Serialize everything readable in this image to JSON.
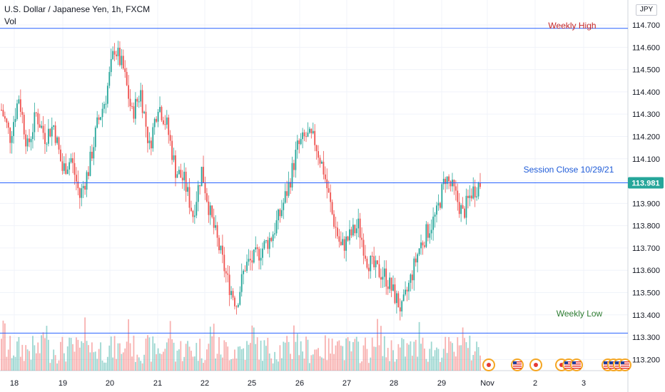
{
  "header": {
    "title": "U.S. Dollar / Japanese Yen, 1h, FXCM",
    "indicator": "Vol",
    "currency": "JPY"
  },
  "annotations": {
    "weekly_high": "Weekly High",
    "weekly_low": "Weekly Low",
    "session_close": "Session Close 10/29/21",
    "last_price": "113.981"
  },
  "colors": {
    "up": "#26a69a",
    "down": "#ef5350",
    "level_line": "#2962ff",
    "weekly_high_text": "#c62828",
    "weekly_low_text": "#2e7d32",
    "session_text": "#1e5bd8",
    "price_tag_bg": "#26a69a"
  },
  "events": [
    "jp-flag-icon",
    "us-flag-icon",
    "jp-flag-icon",
    "jp-flag-icon",
    "us-flag-icon",
    "us-flag-icon",
    "us-flag-icon",
    "us-flag-icon",
    "us-flag-icon",
    "us-flag-icon"
  ],
  "chart_data": {
    "type": "candlestick",
    "y_ticks": [
      "113.200",
      "113.300",
      "113.400",
      "113.500",
      "113.600",
      "113.700",
      "113.800",
      "113.900",
      "114.000",
      "114.100",
      "114.200",
      "114.300",
      "114.400",
      "114.500",
      "114.600",
      "114.700"
    ],
    "x_ticks": [
      "18",
      "19",
      "20",
      "21",
      "22",
      "25",
      "26",
      "27",
      "28",
      "29",
      "Nov",
      "2",
      "3"
    ],
    "ylim": [
      113.15,
      114.78
    ],
    "levels": {
      "weekly_high": 114.685,
      "session_close": 113.992,
      "weekly_low": 113.318
    },
    "anchors": [
      [
        0,
        114.32
      ],
      [
        5,
        114.2
      ],
      [
        10,
        114.38
      ],
      [
        15,
        114.15
      ],
      [
        20,
        114.3
      ],
      [
        25,
        114.2
      ],
      [
        30,
        114.25
      ],
      [
        35,
        114.05
      ],
      [
        40,
        114.1
      ],
      [
        45,
        113.93
      ],
      [
        50,
        114.05
      ],
      [
        55,
        114.25
      ],
      [
        60,
        114.38
      ],
      [
        65,
        114.6
      ],
      [
        70,
        114.5
      ],
      [
        75,
        114.3
      ],
      [
        80,
        114.4
      ],
      [
        85,
        114.15
      ],
      [
        90,
        114.35
      ],
      [
        95,
        114.25
      ],
      [
        100,
        114.05
      ],
      [
        105,
        114.0
      ],
      [
        110,
        113.85
      ],
      [
        115,
        114.05
      ],
      [
        120,
        113.85
      ],
      [
        125,
        113.7
      ],
      [
        130,
        113.55
      ],
      [
        135,
        113.45
      ],
      [
        140,
        113.62
      ],
      [
        145,
        113.65
      ],
      [
        150,
        113.7
      ],
      [
        155,
        113.75
      ],
      [
        160,
        113.85
      ],
      [
        165,
        113.98
      ],
      [
        170,
        114.15
      ],
      [
        175,
        114.2
      ],
      [
        180,
        114.18
      ],
      [
        185,
        114.05
      ],
      [
        190,
        113.85
      ],
      [
        195,
        113.7
      ],
      [
        200,
        113.75
      ],
      [
        205,
        113.8
      ],
      [
        210,
        113.65
      ],
      [
        215,
        113.6
      ],
      [
        220,
        113.58
      ],
      [
        225,
        113.5
      ],
      [
        230,
        113.42
      ],
      [
        235,
        113.56
      ],
      [
        240,
        113.7
      ],
      [
        245,
        113.78
      ],
      [
        250,
        113.85
      ],
      [
        255,
        114.02
      ],
      [
        260,
        113.95
      ],
      [
        265,
        113.85
      ],
      [
        270,
        113.95
      ],
      [
        275,
        113.99
      ]
    ],
    "volume_note": "Volume histogram per bar, colored by candle direction"
  }
}
